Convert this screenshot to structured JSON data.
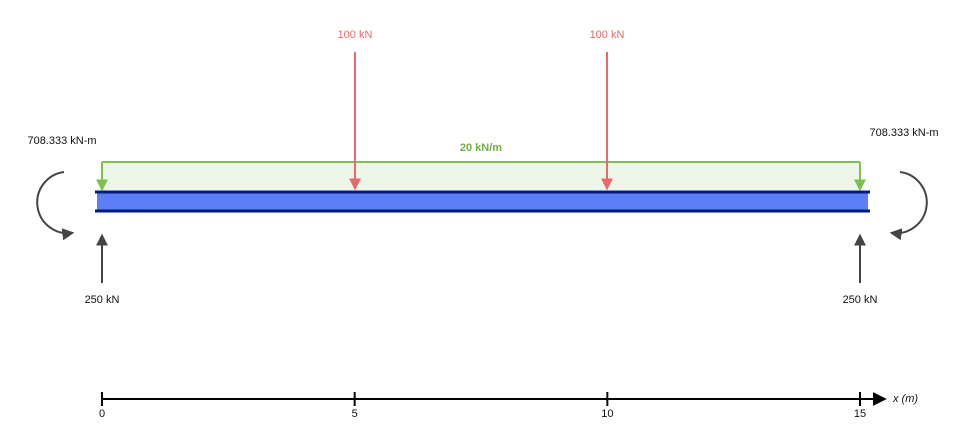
{
  "loads": {
    "point": [
      {
        "label": "100 kN"
      },
      {
        "label": "100 kN"
      }
    ],
    "distributed": {
      "label": "20 kN/m"
    }
  },
  "supports": {
    "left": {
      "moment": "708.333 kN-m",
      "reaction": "250 kN"
    },
    "right": {
      "moment": "708.333 kN-m",
      "reaction": "250 kN"
    }
  },
  "axis": {
    "ticks": [
      0,
      5,
      10,
      15
    ],
    "label": "x (m)"
  }
}
